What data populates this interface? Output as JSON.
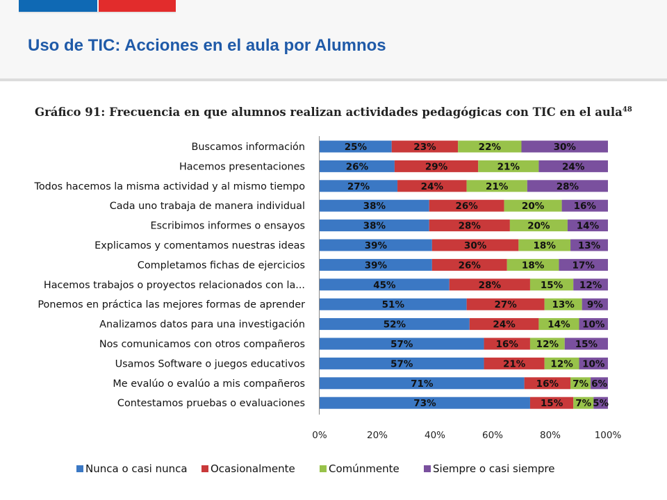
{
  "header": {
    "title": "Uso de TIC: Acciones en el aula por Alumnos",
    "accent_blue": "#0f69b4",
    "accent_red": "#e22c2c"
  },
  "chart_data": {
    "type": "bar",
    "orientation": "horizontal",
    "stacked": "percent",
    "title": "Gráfico 91: Frecuencia en que alumnos realizan actividades pedagógicas con TIC en el aula",
    "title_footnote": "48",
    "categories": [
      "Buscamos información",
      "Hacemos presentaciones",
      "Todos hacemos la misma actividad y al mismo tiempo",
      "Cada uno trabaja de manera individual",
      "Escribimos informes o ensayos",
      "Explicamos  y comentamos nuestras  ideas",
      "Completamos fichas de ejercicios",
      "Hacemos trabajos o  proyectos relacionados con la...",
      "Ponemos en práctica  las mejores formas de aprender",
      "Analizamos datos para una investigación",
      "Nos comunicamos con otros compañeros",
      "Usamos Software o juegos  educativos",
      "Me evalúo o evalúo a mis compañeros",
      "Contestamos pruebas o evaluaciones"
    ],
    "series": [
      {
        "name": "Nunca o casi nunca",
        "color": "#3b78c4",
        "values": [
          25,
          26,
          27,
          38,
          38,
          39,
          39,
          45,
          51,
          52,
          57,
          57,
          71,
          73
        ]
      },
      {
        "name": "Ocasionalmente",
        "color": "#c9393a",
        "values": [
          23,
          29,
          24,
          26,
          28,
          30,
          26,
          28,
          27,
          24,
          16,
          21,
          16,
          15
        ]
      },
      {
        "name": "Comúnmente",
        "color": "#98c24a",
        "values": [
          22,
          21,
          21,
          20,
          20,
          18,
          18,
          15,
          13,
          14,
          12,
          12,
          7,
          7
        ]
      },
      {
        "name": "Siempre o casi siempre",
        "color": "#7a509e",
        "values": [
          30,
          24,
          28,
          16,
          14,
          13,
          17,
          12,
          9,
          10,
          15,
          10,
          6,
          5
        ]
      }
    ],
    "value_suffix": "%",
    "x_ticks": [
      "0%",
      "20%",
      "40%",
      "60%",
      "80%",
      "100%"
    ],
    "xlim": [
      0,
      100
    ],
    "grid": false,
    "legend_position": "bottom"
  }
}
